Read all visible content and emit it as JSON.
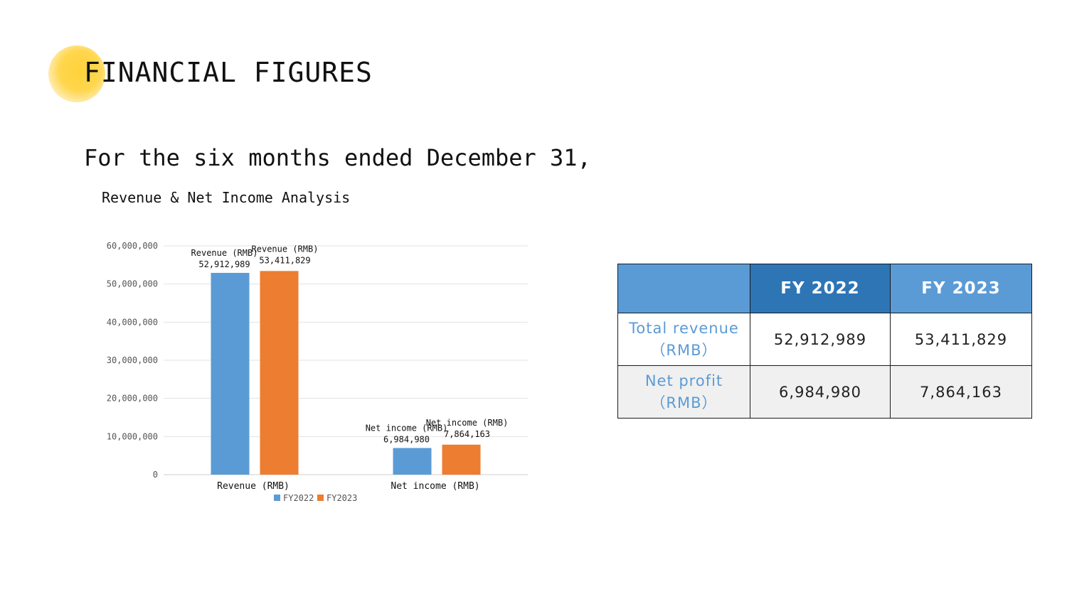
{
  "page": {
    "title": "FINANCIAL FIGURES",
    "subtitle": "For the six months ended December 31,",
    "chart_heading": "Revenue & Net Income Analysis"
  },
  "chart_data": {
    "type": "bar",
    "categories": [
      "Revenue (RMB)",
      "Net income (RMB)"
    ],
    "series": [
      {
        "name": "FY2022",
        "color": "#5b9bd5",
        "values": [
          52912989,
          6984980
        ],
        "labels": [
          "52,912,989",
          "6,984,980"
        ]
      },
      {
        "name": "FY2023",
        "color": "#ed7d31",
        "values": [
          53411829,
          7864163
        ],
        "labels": [
          "53,411,829",
          "7,864,163"
        ]
      }
    ],
    "ylim": [
      0,
      60000000
    ],
    "yticks": [
      0,
      10000000,
      20000000,
      30000000,
      40000000,
      50000000,
      60000000
    ],
    "ytick_labels": [
      "0",
      "10,000,000",
      "20,000,000",
      "30,000,000",
      "40,000,000",
      "50,000,000",
      "60,000,000"
    ],
    "grid": true,
    "legend": "bottom-center"
  },
  "table": {
    "headers": [
      "",
      "FY 2022",
      "FY 2023"
    ],
    "rows": [
      {
        "label_line1": "Total revenue",
        "label_line2": "（RMB）",
        "values": [
          "52,912,989",
          "53,411,829"
        ]
      },
      {
        "label_line1": "Net profit",
        "label_line2": "（RMB）",
        "values": [
          "6,984,980",
          "7,864,163"
        ]
      }
    ]
  }
}
